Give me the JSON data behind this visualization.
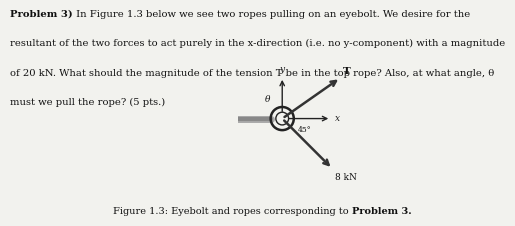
{
  "bg_color": "#f2f2ee",
  "title_bold": "Problem 3)",
  "body_text": " In Figure 1.3 below we see two ropes pulling on an eyebolt. We desire for the\nresultant of the two forces to act purely in the x-direction (i.e. no y-component) with a magnitude\nof 20 kN. What should the magnitude of the tension T be in the top rope? Also, at what angle, θ\nmust we pull the rope? (5 pts.)",
  "caption_normal": "Figure 1.3: Eyebolt and ropes corresponding to ",
  "caption_bold": "Problem 3",
  "caption_end": ".",
  "wall_color": "#c8a050",
  "wall_edge_color": "#7a6530",
  "screw_color": "#aaaaaa",
  "axes_color": "#222222",
  "rope_color": "#333333",
  "text_color": "#111111",
  "font_size_body": 7.2,
  "font_size_diag": 6.5,
  "font_size_caption": 7.0
}
